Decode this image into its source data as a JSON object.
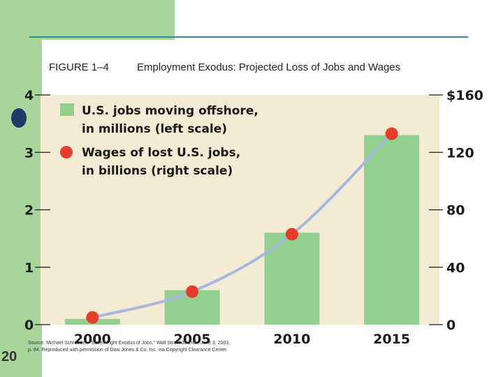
{
  "figure_label": "FIGURE 1–4",
  "figure_title": "Employment Exodus: Projected Loss of Jobs and Wages",
  "slide_number": "20",
  "source_lines": [
    "Source: Michael Schroeder, \"States Fight Exodus of Jobs,\" Wall Street Journal, June 3, 2003,",
    "p. 84. Reproduced with permission of Dow Jones & Co. Inc. via Copyright Clearance Center."
  ],
  "legend": {
    "jobs_line1": "U.S. jobs moving offshore,",
    "jobs_line2": "in millions (left scale)",
    "wages_line1": "Wages of lost U.S. jobs,",
    "wages_line2": "in billions (right scale)"
  },
  "colors": {
    "bar": "#93cf8e",
    "plot_bg": "#f4ebd4",
    "line": "#a8b8dc",
    "marker": "#e53d2c",
    "accent": "#a8d59a"
  },
  "chart_data": {
    "type": "bar",
    "categories": [
      "2000",
      "2005",
      "2010",
      "2015"
    ],
    "series": [
      {
        "name": "U.S. jobs moving offshore, in millions (left scale)",
        "type": "bar",
        "axis": "left",
        "values": [
          0.1,
          0.6,
          1.6,
          3.3
        ]
      },
      {
        "name": "Wages of lost U.S. jobs, in billions (right scale)",
        "type": "line",
        "axis": "right",
        "values": [
          5,
          23,
          63,
          133
        ]
      }
    ],
    "left_axis": {
      "ticks": [
        "0",
        "1",
        "2",
        "3",
        "4"
      ],
      "ylim": [
        0,
        4
      ]
    },
    "right_axis": {
      "ticks": [
        "0",
        "40",
        "80",
        "120",
        "$160"
      ],
      "ylim": [
        0,
        160
      ]
    },
    "grid": false,
    "legend_position": "top-left"
  }
}
